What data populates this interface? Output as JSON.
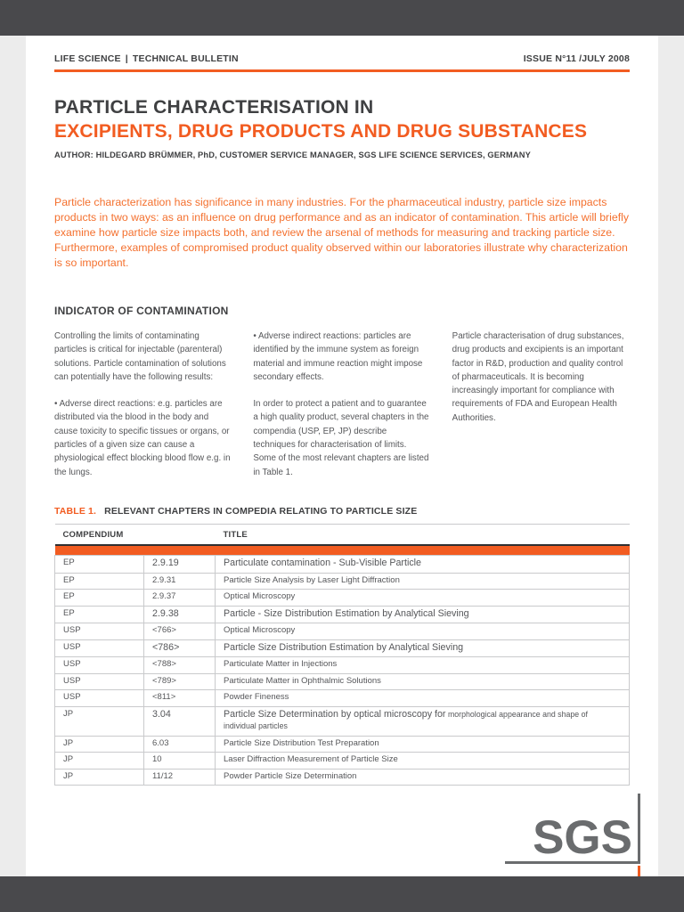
{
  "masthead": {
    "left_primary": "LIFE SCIENCE",
    "separator": "|",
    "left_secondary": "TECHNICAL BULLETIN",
    "right": "ISSUE N°11 /JULY 2008"
  },
  "title": {
    "line1": "PARTICLE CHARACTERISATION IN",
    "line2": "EXCIPIENTS, DRUG PRODUCTS AND DRUG SUBSTANCES",
    "author": "AUTHOR: HILDEGARD BRÜMMER, PhD, CUSTOMER SERVICE MANAGER, SGS LIFE SCIENCE SERVICES, GERMANY"
  },
  "intro": "Particle characterization has significance in many industries. For the pharmaceutical industry, particle size impacts products in two ways: as an influence on drug performance and as an indicator of contamination. This article will briefly examine how particle size impacts both, and review the arsenal of methods for measuring and tracking particle size. Furthermore, examples of compromised product quality observed within our laboratories illustrate why characterization is so important.",
  "section": {
    "heading": "INDICATOR OF CONTAMINATION",
    "col1": [
      "Controlling the limits of contaminating particles is critical for injectable (parenteral) solutions. Particle contamination of solutions can potentially have the following results:",
      "• Adverse direct reactions: e.g. particles are distributed via the blood in the body and cause toxicity to specific tissues or organs, or particles of a given size can cause a physiological effect blocking blood flow e.g. in the lungs."
    ],
    "col2": [
      "• Adverse indirect reactions: particles are identified by the immune system as foreign material and immune reaction might impose secondary effects.",
      "In order to protect a patient and to guarantee a high quality product, several chapters in the compendia (USP, EP, JP) describe techniques for characterisation of limits. Some of the most relevant chapters are listed in Table 1."
    ],
    "col3": [
      "Particle characterisation of drug substances, drug products and excipients is an important factor in R&D, production and quality control of pharmaceuticals. It is becoming increasingly important for compliance with requirements of FDA and European Health Authorities."
    ]
  },
  "table": {
    "caption_label": "TABLE 1.",
    "caption_text": "RELEVANT CHAPTERS IN COMPEDIA RELATING TO PARTICLE SIZE",
    "headers": [
      "COMPENDIUM",
      "TITLE"
    ],
    "rows": [
      {
        "compendium": "EP",
        "chapter": "2.9.19",
        "title": "Particulate contamination - Sub-Visible Particle",
        "size": "lg"
      },
      {
        "compendium": "EP",
        "chapter": "2.9.31",
        "title": "Particle Size Analysis by Laser Light Diffraction",
        "size": "sm"
      },
      {
        "compendium": "EP",
        "chapter": "2.9.37",
        "title": "Optical Microscopy",
        "size": "sm"
      },
      {
        "compendium": "EP",
        "chapter": "2.9.38",
        "title": "Particle - Size Distribution Estimation by Analytical Sieving",
        "size": "lg"
      },
      {
        "compendium": "USP",
        "chapter": "<766>",
        "title": "Optical Microscopy",
        "size": "sm"
      },
      {
        "compendium": "USP",
        "chapter": "<786>",
        "title": "Particle Size Distribution Estimation by Analytical Sieving",
        "size": "lg"
      },
      {
        "compendium": "USP",
        "chapter": "<788>",
        "title": "Particulate Matter in Injections",
        "size": "sm"
      },
      {
        "compendium": "USP",
        "chapter": "<789>",
        "title": "Particulate Matter in Ophthalmic Solutions",
        "size": "sm"
      },
      {
        "compendium": "USP",
        "chapter": "<811>",
        "title": "Powder Fineness",
        "size": "sm"
      },
      {
        "compendium": "JP",
        "chapter": "3.04",
        "title": "Particle Size Determination by optical microscopy for",
        "title_small": "morphological appearance and shape of individual particles",
        "size": "lg"
      },
      {
        "compendium": "JP",
        "chapter": "6.03",
        "title": "Particle Size Distribution Test Preparation",
        "size": "sm"
      },
      {
        "compendium": "JP",
        "chapter": "10",
        "title": "Laser Diffraction Measurement of Particle Size",
        "size": "sm"
      },
      {
        "compendium": "JP",
        "chapter": "11/12",
        "title": "Powder Particle Size Determination",
        "size": "sm"
      }
    ]
  },
  "footer": {
    "logo_text": "SGS"
  },
  "colors": {
    "accent_orange": "#f25c21",
    "intro_orange": "#f4702e",
    "dark_text": "#3f4042",
    "body_text": "#56575a",
    "logo_gray": "#6a6c6e",
    "letterbox_gray": "#49494c"
  }
}
